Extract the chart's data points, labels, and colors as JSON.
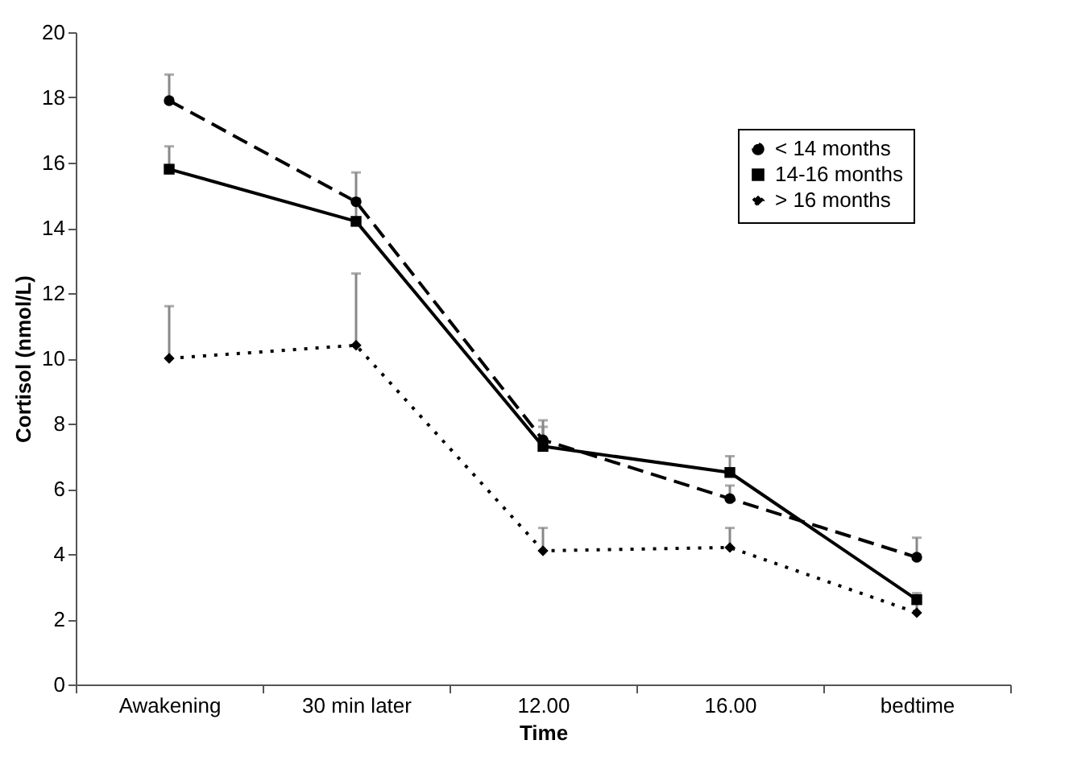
{
  "chart_data": {
    "type": "line",
    "xlabel": "Time",
    "ylabel": "Cortisol (nmol/L)",
    "categories": [
      "Awakening",
      "30 min later",
      "12.00",
      "16.00",
      "bedtime"
    ],
    "ylim": [
      0,
      20
    ],
    "yticks": [
      0,
      2,
      4,
      6,
      8,
      10,
      12,
      14,
      16,
      18,
      20
    ],
    "grid": false,
    "legend": "top right",
    "series": [
      {
        "name": "< 14 months",
        "color": "#000000",
        "line_style": "dashed",
        "marker": "circle",
        "values": [
          17.9,
          14.8,
          7.5,
          5.7,
          3.9
        ],
        "errors": [
          [
            17.9,
            18.7
          ],
          [
            14.8,
            15.7
          ],
          [
            7.5,
            8.1
          ],
          [
            5.7,
            6.1
          ],
          [
            3.9,
            4.5
          ]
        ]
      },
      {
        "name": "14-16 months",
        "color": "#000000",
        "line_style": "solid",
        "marker": "square",
        "values": [
          15.8,
          14.2,
          7.3,
          6.5,
          2.6
        ],
        "errors": [
          [
            15.8,
            16.5
          ],
          [
            14.2,
            14.9
          ],
          [
            7.3,
            7.9
          ],
          [
            6.5,
            7.0
          ],
          [
            2.6,
            2.8
          ]
        ]
      },
      {
        "name": "> 16 months",
        "color": "#000000",
        "line_style": "dotted",
        "marker": "diamond",
        "values": [
          10.0,
          10.4,
          4.1,
          4.2,
          2.2
        ],
        "errors": [
          [
            10.0,
            11.6
          ],
          [
            10.4,
            12.6
          ],
          [
            4.1,
            4.8
          ],
          [
            4.2,
            4.8
          ],
          [
            2.2,
            2.5
          ]
        ]
      }
    ]
  }
}
